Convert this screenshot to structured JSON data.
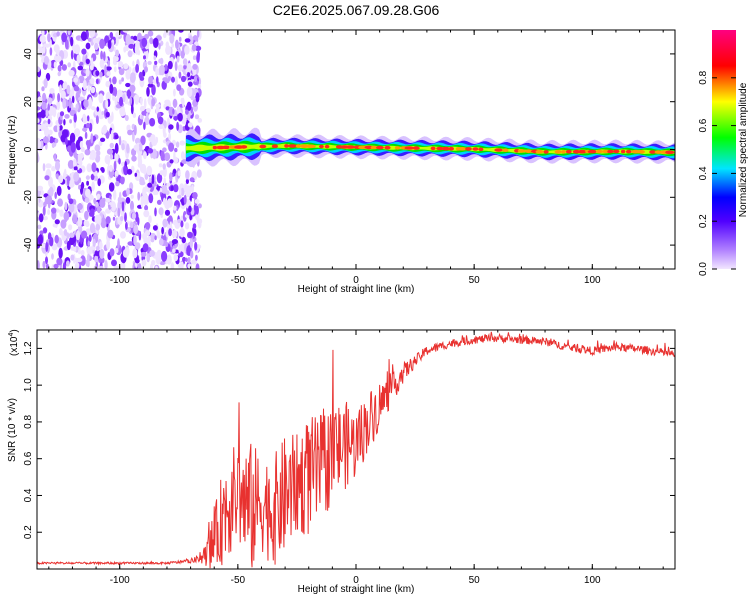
{
  "title": "C2E6.2025.067.09.28.G06",
  "chart_data": [
    {
      "type": "heatmap",
      "name": "spectrogram",
      "xlabel": "Height of straight line (km)",
      "ylabel": "Frequency (Hz)",
      "xlim": [
        -135,
        135
      ],
      "ylim": [
        -50,
        50
      ],
      "xticks": [
        -100,
        -50,
        0,
        50,
        100
      ],
      "yticks": [
        -40,
        -20,
        0,
        20,
        40
      ],
      "xtick_labels": [
        "-100",
        "-50",
        "0",
        "50",
        "100"
      ],
      "ytick_labels": [
        "-40",
        "-20",
        "0",
        "20",
        "40"
      ],
      "noise_region_km": [
        -135,
        -70
      ],
      "signal_line": {
        "frequency_hz": [
          {
            "x": -72,
            "f": 0.5
          },
          {
            "x": -30,
            "f": 1.5
          },
          {
            "x": 10,
            "f": 0.8
          },
          {
            "x": 50,
            "f": 0.2
          },
          {
            "x": 80,
            "f": -1.0
          },
          {
            "x": 110,
            "f": -0.8
          },
          {
            "x": 135,
            "f": -1.2
          }
        ],
        "peak_amplitude_segments": [
          {
            "x0": -60,
            "x1": -20,
            "amp": 0.75
          },
          {
            "x0": -20,
            "x1": 10,
            "amp": 0.95
          },
          {
            "x0": 10,
            "x1": 70,
            "amp": 0.6
          },
          {
            "x0": 70,
            "x1": 135,
            "amp": 0.9
          }
        ]
      },
      "colorbar": {
        "label": "Normalized spectral amplitude",
        "range": [
          0.0,
          1.0
        ],
        "ticks": [
          0.0,
          0.2,
          0.4,
          0.6,
          0.8
        ],
        "tick_labels": [
          "0.0",
          "0.2",
          "0.4",
          "0.6",
          "0.8"
        ],
        "colors": [
          "#f2e6ff",
          "#7a00ff",
          "#0000ff",
          "#00e5ff",
          "#00ff00",
          "#ffff00",
          "#ff0000",
          "#ff0080"
        ]
      }
    },
    {
      "type": "line",
      "name": "snr",
      "xlabel": "Height of straight line (km)",
      "ylabel": "SNR (10 * v/v)",
      "scale_label": "(x10",
      "scale_exponent": "4",
      "scale_close": ")",
      "xlim": [
        -135,
        135
      ],
      "ylim": [
        0,
        1.3
      ],
      "xticks": [
        -100,
        -50,
        0,
        50,
        100
      ],
      "yticks": [
        0.2,
        0.4,
        0.6,
        0.8,
        1.0,
        1.2
      ],
      "xtick_labels": [
        "-100",
        "-50",
        "0",
        "50",
        "100"
      ],
      "ytick_labels": [
        "0.2",
        "0.4",
        "0.6",
        "0.8",
        "1.0",
        "1.2"
      ],
      "color": "#e8312f",
      "envelope": {
        "x": [
          -135,
          -80,
          -70,
          -65,
          -60,
          -55,
          -50,
          -45,
          -40,
          -35,
          -30,
          -25,
          -20,
          -15,
          -10,
          -5,
          0,
          5,
          10,
          15,
          20,
          25,
          30,
          40,
          50,
          60,
          70,
          80,
          90,
          100,
          110,
          120,
          130,
          135
        ],
        "base": [
          0.03,
          0.03,
          0.04,
          0.05,
          0.1,
          0.25,
          0.33,
          0.2,
          0.28,
          0.22,
          0.3,
          0.38,
          0.4,
          0.45,
          0.55,
          0.6,
          0.62,
          0.75,
          0.85,
          0.95,
          1.05,
          1.12,
          1.18,
          1.22,
          1.24,
          1.25,
          1.24,
          1.23,
          1.2,
          1.18,
          1.2,
          1.19,
          1.17,
          1.16
        ],
        "spike": [
          0.01,
          0.01,
          0.02,
          0.05,
          0.3,
          0.55,
          0.5,
          0.7,
          0.5,
          0.55,
          0.6,
          0.5,
          0.6,
          0.55,
          0.5,
          0.45,
          0.35,
          0.3,
          0.25,
          0.15,
          0.1,
          0.06,
          0.05,
          0.04,
          0.04,
          0.04,
          0.04,
          0.04,
          0.04,
          0.04,
          0.04,
          0.04,
          0.04,
          0.04
        ]
      }
    }
  ]
}
